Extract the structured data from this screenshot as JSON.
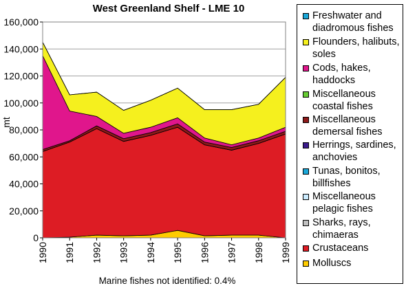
{
  "chart_data": {
    "type": "area",
    "stacked": true,
    "title": "West Greenland Shelf - LME 10",
    "ylabel": "mt",
    "xlabel": "",
    "x": [
      "1990",
      "1991",
      "1992",
      "1993",
      "1994",
      "1995",
      "1996",
      "1997",
      "1998",
      "1999"
    ],
    "ylim": [
      0,
      160000
    ],
    "yticks": [
      "0",
      "20,000",
      "40,000",
      "60,000",
      "80,000",
      "100,000",
      "120,000",
      "140,000",
      "160,000"
    ],
    "grid": true,
    "legend_position": "right",
    "footnote": "Marine fishes not identified: 0.4%",
    "series": [
      {
        "name": "Molluscs",
        "color": "#FFCC00",
        "values": [
          0,
          500,
          2000,
          1500,
          2000,
          5500,
          1500,
          2000,
          2000,
          0
        ]
      },
      {
        "name": "Crustaceans",
        "color": "#DD1C24",
        "values": [
          64000,
          70500,
          79000,
          70000,
          74000,
          76500,
          67500,
          63000,
          68000,
          77000
        ]
      },
      {
        "name": "Sharks, rays,\nchimaeras",
        "color": "#C0C0C0",
        "values": [
          0,
          0,
          0,
          0,
          0,
          0,
          0,
          0,
          0,
          0
        ]
      },
      {
        "name": "Miscellaneous\npelagic fishes",
        "color": "#CCECFF",
        "values": [
          0,
          0,
          0,
          0,
          0,
          0,
          0,
          0,
          0,
          0
        ]
      },
      {
        "name": "Tunas, bonitos,\nbillfishes",
        "color": "#1AA7D8",
        "values": [
          0,
          0,
          0,
          0,
          0,
          0,
          0,
          0,
          0,
          0
        ]
      },
      {
        "name": "Herrings, sardines,\nanchovies",
        "color": "#3B1C8C",
        "values": [
          0,
          0,
          0,
          0,
          0,
          0,
          0,
          0,
          0,
          0
        ]
      },
      {
        "name": "Miscellaneous\ndemersal fishes",
        "color": "#8E1A1A",
        "values": [
          1500,
          1000,
          2000,
          2000,
          2000,
          2500,
          2000,
          2000,
          2000,
          2000
        ]
      },
      {
        "name": "Miscellaneous\ncoastal fishes",
        "color": "#66CC33",
        "values": [
          0,
          0,
          0,
          0,
          0,
          0,
          0,
          0,
          0,
          0
        ]
      },
      {
        "name": "Cods, hakes,\nhaddocks",
        "color": "#E0168C",
        "values": [
          69500,
          22000,
          7000,
          4000,
          4000,
          4500,
          3000,
          2000,
          2000,
          3000
        ]
      },
      {
        "name": "Flounders, halibuts,\nsoles",
        "color": "#F5F01E",
        "values": [
          10000,
          12000,
          18000,
          17000,
          20000,
          22000,
          21000,
          26000,
          25000,
          37000
        ]
      },
      {
        "name": "Freshwater and\ndiadromous fishes",
        "color": "#1AA7D8",
        "values": [
          0,
          0,
          0,
          0,
          0,
          0,
          0,
          0,
          0,
          0
        ]
      }
    ]
  }
}
